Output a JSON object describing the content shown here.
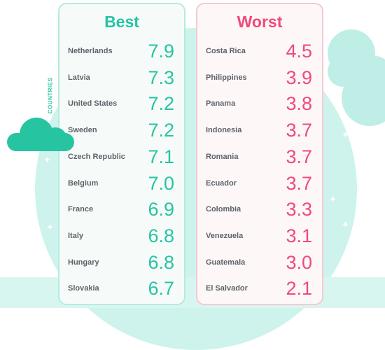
{
  "side_label": "COUNTRIES",
  "colors": {
    "best": "#27c4a2",
    "worst": "#ee4b79"
  },
  "best": {
    "title": "Best",
    "rows": [
      {
        "country": "Netherlands",
        "score": "7.9"
      },
      {
        "country": "Latvia",
        "score": "7.3"
      },
      {
        "country": "United States",
        "score": "7.2"
      },
      {
        "country": "Sweden",
        "score": "7.2"
      },
      {
        "country": "Czech Republic",
        "score": "7.1"
      },
      {
        "country": "Belgium",
        "score": "7.0"
      },
      {
        "country": "France",
        "score": "6.9"
      },
      {
        "country": "Italy",
        "score": "6.8"
      },
      {
        "country": "Hungary",
        "score": "6.8"
      },
      {
        "country": "Slovakia",
        "score": "6.7"
      }
    ]
  },
  "worst": {
    "title": "Worst",
    "rows": [
      {
        "country": "Costa Rica",
        "score": "4.5"
      },
      {
        "country": "Philippines",
        "score": "3.9"
      },
      {
        "country": "Panama",
        "score": "3.8"
      },
      {
        "country": "Indonesia",
        "score": "3.7"
      },
      {
        "country": "Romania",
        "score": "3.7"
      },
      {
        "country": "Ecuador",
        "score": "3.7"
      },
      {
        "country": "Colombia",
        "score": "3.3"
      },
      {
        "country": "Venezuela",
        "score": "3.1"
      },
      {
        "country": "Guatemala",
        "score": "3.0"
      },
      {
        "country": "El Salvador",
        "score": "2.1"
      }
    ]
  }
}
